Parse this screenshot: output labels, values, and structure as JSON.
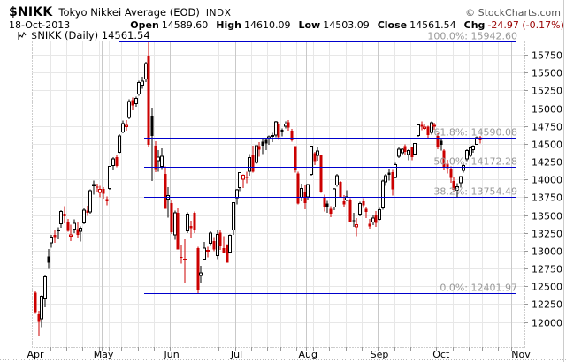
{
  "header": {
    "symbol": "$NIKK",
    "name": "Tokyo Nikkei Average (EOD)",
    "exchange": "INDX",
    "copyright": "© StockCharts.com",
    "date": "18-Oct-2013",
    "ohlc": [
      {
        "label": "Open",
        "value": "14589.60"
      },
      {
        "label": "High",
        "value": "14610.09"
      },
      {
        "label": "Low",
        "value": "14503.09"
      },
      {
        "label": "Close",
        "value": "14561.54"
      },
      {
        "label": "Chg",
        "value": "-24.97 (-0.17%)"
      }
    ],
    "legend": "$NIKK (Daily) 14561.54"
  },
  "colors": {
    "up": "#000000",
    "down": "#cc0000",
    "change_negative": "#990000",
    "fib_line": "#0000cc",
    "fib_label": "#999999",
    "grid": "#e7e7e7",
    "grid_month": "#c9c9c9",
    "axis": "#999999",
    "axis_text": "#000000"
  },
  "chart_data": {
    "type": "candlestick",
    "title": "$NIKK (Daily) 14561.54",
    "x_labels": [
      "Apr",
      "May",
      "Jun",
      "Jul",
      "Aug",
      "Sep",
      "Oct",
      "Nov"
    ],
    "y_ticks": [
      12000,
      12250,
      12500,
      12750,
      13000,
      13250,
      13500,
      13750,
      14000,
      14250,
      14500,
      14750,
      15000,
      15250,
      15500,
      15750
    ],
    "y_range_edges": [
      11647,
      15950
    ],
    "grid": true,
    "legend_position": "top-left",
    "fib_levels": [
      {
        "pct": "100.0%",
        "value": 15942.6,
        "label": "100.0%: 15942.60"
      },
      {
        "pct": "61.8%",
        "value": 14590.08,
        "label": "61.8%: 14590.08"
      },
      {
        "pct": "50.0%",
        "value": 14172.28,
        "label": "50.0%: 14172.28"
      },
      {
        "pct": "38.2%",
        "value": 13754.49,
        "label": "38.2%: 13754.49"
      },
      {
        "pct": "0.0%",
        "value": 12401.97,
        "label": "0.0%: 12401.97"
      }
    ],
    "candles": [
      [
        "2013-04-01",
        12408,
        12426,
        12110,
        12135
      ],
      [
        "2013-04-02",
        12103,
        12155,
        11805,
        12003
      ],
      [
        "2013-04-03",
        12045,
        12374,
        11929,
        12362
      ],
      [
        "2013-04-04",
        12320,
        12650,
        12208,
        12635
      ],
      [
        "2013-04-05",
        12917,
        13026,
        12747,
        12834
      ],
      [
        "2013-04-08",
        13112,
        13225,
        13041,
        13193
      ],
      [
        "2013-04-09",
        13222,
        13294,
        13113,
        13192
      ],
      [
        "2013-04-10",
        13277,
        13329,
        13160,
        13288
      ],
      [
        "2013-04-11",
        13374,
        13568,
        13324,
        13549
      ],
      [
        "2013-04-12",
        13522,
        13624,
        13386,
        13485
      ],
      [
        "2013-04-15",
        13400,
        13444,
        13263,
        13276
      ],
      [
        "2013-04-16",
        13203,
        13363,
        13134,
        13221
      ],
      [
        "2013-04-17",
        13303,
        13437,
        13246,
        13383
      ],
      [
        "2013-04-18",
        13300,
        13394,
        13175,
        13220
      ],
      [
        "2013-04-19",
        13270,
        13338,
        13131,
        13316
      ],
      [
        "2013-04-22",
        13388,
        13591,
        13370,
        13568
      ],
      [
        "2013-04-23",
        13566,
        13631,
        13486,
        13530
      ],
      [
        "2013-04-24",
        13543,
        13860,
        13517,
        13843
      ],
      [
        "2013-04-25",
        13908,
        13983,
        13787,
        13926
      ],
      [
        "2013-04-26",
        13900,
        13943,
        13818,
        13884
      ],
      [
        "2013-04-30",
        13820,
        13910,
        13751,
        13861
      ],
      [
        "2013-05-01",
        13867,
        13894,
        13733,
        13799
      ],
      [
        "2013-05-02",
        13722,
        13759,
        13637,
        13694
      ],
      [
        "2013-05-07",
        13875,
        14192,
        13852,
        14180
      ],
      [
        "2013-05-08",
        14195,
        14314,
        14137,
        14286
      ],
      [
        "2013-05-09",
        14311,
        14347,
        14168,
        14191
      ],
      [
        "2013-05-10",
        14384,
        14636,
        14372,
        14608
      ],
      [
        "2013-05-13",
        14669,
        14829,
        14650,
        14782
      ],
      [
        "2013-05-14",
        14744,
        14831,
        14688,
        14758
      ],
      [
        "2013-05-15",
        14869,
        15125,
        14847,
        15096
      ],
      [
        "2013-05-16",
        15112,
        15148,
        14970,
        15037
      ],
      [
        "2013-05-17",
        15063,
        15163,
        15022,
        15138
      ],
      [
        "2013-05-20",
        15202,
        15386,
        15172,
        15361
      ],
      [
        "2013-05-21",
        15325,
        15441,
        15272,
        15381
      ],
      [
        "2013-05-22",
        15409,
        15650,
        15367,
        15627
      ],
      [
        "2013-05-23",
        15739,
        15942.6,
        14461,
        14484
      ],
      [
        "2013-05-24",
        14894,
        15007,
        13981,
        14612
      ],
      [
        "2013-05-27",
        14473,
        14535,
        14103,
        14143
      ],
      [
        "2013-05-28",
        14261,
        14414,
        14106,
        14312
      ],
      [
        "2013-05-29",
        14180,
        14435,
        14147,
        14326
      ],
      [
        "2013-05-30",
        14077,
        14185,
        13589,
        13589
      ],
      [
        "2013-05-31",
        13724,
        13894,
        13462,
        13775
      ],
      [
        "2013-06-03",
        13671,
        13711,
        13237,
        13262
      ],
      [
        "2013-06-04",
        13222,
        13563,
        13151,
        13534
      ],
      [
        "2013-06-05",
        13530,
        13594,
        13014,
        13015
      ],
      [
        "2013-06-06",
        12909,
        13071,
        12818,
        12904
      ],
      [
        "2013-06-07",
        12866,
        13157,
        12548,
        12878
      ],
      [
        "2013-06-10",
        13279,
        13541,
        13246,
        13514
      ],
      [
        "2013-06-11",
        13346,
        13423,
        13177,
        13318
      ],
      [
        "2013-06-12",
        13532,
        13549,
        13244,
        13289
      ],
      [
        "2013-06-13",
        13035,
        13055,
        12402,
        12445
      ],
      [
        "2013-06-14",
        12653,
        12788,
        12548,
        12687
      ],
      [
        "2013-06-17",
        12880,
        13121,
        12861,
        13033
      ],
      [
        "2013-06-18",
        13006,
        13057,
        12904,
        13007
      ],
      [
        "2013-06-19",
        13106,
        13269,
        13066,
        13245
      ],
      [
        "2013-06-20",
        13135,
        13189,
        12990,
        13015
      ],
      [
        "2013-06-21",
        12932,
        13282,
        12883,
        13230
      ],
      [
        "2013-06-24",
        13253,
        13288,
        13010,
        13063
      ],
      [
        "2013-06-25",
        13033,
        13206,
        12967,
        12969
      ],
      [
        "2013-06-26",
        13078,
        13091,
        12834,
        12834
      ],
      [
        "2013-06-27",
        12982,
        13231,
        12974,
        13214
      ],
      [
        "2013-06-28",
        13290,
        13677,
        13222,
        13677
      ],
      [
        "2013-07-01",
        13745,
        13867,
        13647,
        13853
      ],
      [
        "2013-07-02",
        13884,
        14099,
        13835,
        14099
      ],
      [
        "2013-07-03",
        14005,
        14071,
        13879,
        14056
      ],
      [
        "2013-07-04",
        14043,
        14110,
        13947,
        14019
      ],
      [
        "2013-07-05",
        14113,
        14359,
        14055,
        14310
      ],
      [
        "2013-07-08",
        14338,
        14475,
        14095,
        14109
      ],
      [
        "2013-07-09",
        14240,
        14479,
        14222,
        14473
      ],
      [
        "2013-07-10",
        14470,
        14524,
        14321,
        14417
      ],
      [
        "2013-07-11",
        14530,
        14574,
        14357,
        14473
      ],
      [
        "2013-07-12",
        14565,
        14589,
        14413,
        14506
      ],
      [
        "2013-07-16",
        14580,
        14620,
        14487,
        14599
      ],
      [
        "2013-07-17",
        14603,
        14657,
        14526,
        14615
      ],
      [
        "2013-07-18",
        14624,
        14823,
        14590,
        14809
      ],
      [
        "2013-07-19",
        14786,
        14807,
        14565,
        14590
      ],
      [
        "2013-07-22",
        14700,
        14715,
        14603,
        14658
      ],
      [
        "2013-07-23",
        14750,
        14818,
        14718,
        14779
      ],
      [
        "2013-07-24",
        14800,
        14831,
        14688,
        14731
      ],
      [
        "2013-07-25",
        14686,
        14712,
        14529,
        14563
      ],
      [
        "2013-07-26",
        14466,
        14469,
        14096,
        14130
      ],
      [
        "2013-07-29",
        14086,
        14107,
        13650,
        13661
      ],
      [
        "2013-07-30",
        13750,
        13944,
        13693,
        13870
      ],
      [
        "2013-07-31",
        13826,
        13926,
        13581,
        13668
      ],
      [
        "2013-08-01",
        13757,
        13935,
        13720,
        13926
      ],
      [
        "2013-08-02",
        14071,
        14466,
        14051,
        14466
      ],
      [
        "2013-08-05",
        14370,
        14387,
        14203,
        14258
      ],
      [
        "2013-08-06",
        14335,
        14450,
        14261,
        14401
      ],
      [
        "2013-08-07",
        14347,
        14351,
        13810,
        13825
      ],
      [
        "2013-08-08",
        13753,
        13785,
        13551,
        13606
      ],
      [
        "2013-08-09",
        13662,
        13702,
        13531,
        13615
      ],
      [
        "2013-08-12",
        13588,
        13628,
        13470,
        13519
      ],
      [
        "2013-08-13",
        13611,
        13879,
        13572,
        13867
      ],
      [
        "2013-08-14",
        13925,
        14077,
        13895,
        14050
      ],
      [
        "2013-08-15",
        13966,
        13977,
        13747,
        13753
      ],
      [
        "2013-08-16",
        13695,
        13783,
        13609,
        13650
      ],
      [
        "2013-08-19",
        13713,
        13848,
        13696,
        13758
      ],
      [
        "2013-08-20",
        13710,
        13739,
        13393,
        13396
      ],
      [
        "2013-08-21",
        13427,
        13529,
        13336,
        13424
      ],
      [
        "2013-08-22",
        13334,
        13459,
        13206,
        13365
      ],
      [
        "2013-08-23",
        13513,
        13688,
        13484,
        13661
      ],
      [
        "2013-08-26",
        13691,
        13737,
        13598,
        13636
      ],
      [
        "2013-08-27",
        13586,
        13619,
        13459,
        13542
      ],
      [
        "2013-08-28",
        13378,
        13448,
        13309,
        13338
      ],
      [
        "2013-08-29",
        13402,
        13506,
        13358,
        13460
      ],
      [
        "2013-08-30",
        13498,
        13555,
        13334,
        13389
      ],
      [
        "2013-09-02",
        13438,
        13602,
        13429,
        13573
      ],
      [
        "2013-09-03",
        13598,
        13997,
        13577,
        13978
      ],
      [
        "2013-09-04",
        13966,
        14076,
        13912,
        14054
      ],
      [
        "2013-09-05",
        14094,
        14154,
        13985,
        14065
      ],
      [
        "2013-09-06",
        14102,
        14145,
        13773,
        13861
      ],
      [
        "2013-09-09",
        14025,
        14235,
        14013,
        14205
      ],
      [
        "2013-09-10",
        14327,
        14457,
        14301,
        14423
      ],
      [
        "2013-09-11",
        14373,
        14440,
        14336,
        14425
      ],
      [
        "2013-09-12",
        14468,
        14490,
        14347,
        14387
      ],
      [
        "2013-09-13",
        14350,
        14427,
        14270,
        14405
      ],
      [
        "2013-09-17",
        14447,
        14460,
        14269,
        14312
      ],
      [
        "2013-09-18",
        14356,
        14513,
        14335,
        14505
      ],
      [
        "2013-09-19",
        14618,
        14780,
        14598,
        14766
      ],
      [
        "2013-09-20",
        14766,
        14817,
        14693,
        14742
      ],
      [
        "2013-09-24",
        14716,
        14787,
        14699,
        14733
      ],
      [
        "2013-09-25",
        14738,
        14756,
        14571,
        14621
      ],
      [
        "2013-09-26",
        14661,
        14817,
        14632,
        14799
      ],
      [
        "2013-09-27",
        14750,
        14799,
        14695,
        14760
      ],
      [
        "2013-09-30",
        14611,
        14648,
        14426,
        14456
      ],
      [
        "2013-10-01",
        14540,
        14578,
        14404,
        14485
      ],
      [
        "2013-10-02",
        14404,
        14425,
        14138,
        14170
      ],
      [
        "2013-10-03",
        14218,
        14274,
        14084,
        14157
      ],
      [
        "2013-10-04",
        14155,
        14181,
        13951,
        14024
      ],
      [
        "2013-10-07",
        13980,
        14032,
        13824,
        13853
      ],
      [
        "2013-10-08",
        13846,
        13945,
        13749,
        13895
      ],
      [
        "2013-10-09",
        13952,
        14049,
        13884,
        14038
      ],
      [
        "2013-10-10",
        14128,
        14249,
        14099,
        14195
      ],
      [
        "2013-10-11",
        14288,
        14425,
        14260,
        14405
      ],
      [
        "2013-10-15",
        14335,
        14471,
        14316,
        14442
      ],
      [
        "2013-10-16",
        14421,
        14482,
        14378,
        14467
      ],
      [
        "2013-10-17",
        14492,
        14606,
        14487,
        14587
      ],
      [
        "2013-10-18",
        14589.6,
        14610.09,
        14503.09,
        14561.54
      ]
    ]
  }
}
